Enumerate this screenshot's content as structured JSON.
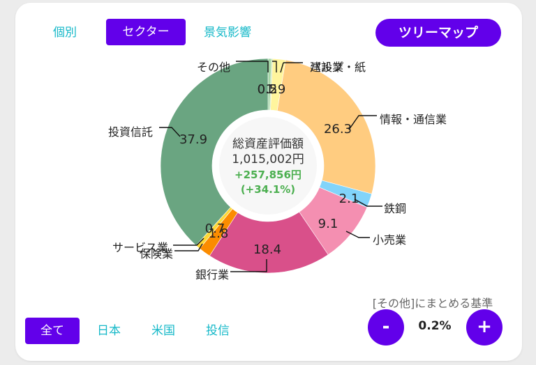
{
  "view_tabs": [
    "個別",
    "セクター",
    "景気影響"
  ],
  "treemap_label": "ツリーマップ",
  "region_tabs": [
    "全て",
    "日本",
    "米国",
    "投信"
  ],
  "threshold": {
    "label": "[その他]にまとめる基準",
    "value": "0.2%",
    "minus": "-",
    "plus": "+"
  },
  "chart_data": {
    "type": "pie",
    "title": "",
    "center": {
      "line1": "総資産評価額",
      "line2": "1,015,002円",
      "line3": "+257,856円",
      "line4": "(+34.1%)"
    },
    "slices": [
      {
        "name": "その他",
        "value": 0.5,
        "label": "0.5",
        "color": "#a5d6a7"
      },
      {
        "name": "建設業",
        "value": 0.2,
        "label": "0.2",
        "color": "#c5e1a5"
      },
      {
        "name": "パルプ・紙",
        "value": 1.9,
        "label": "1.9",
        "color": "#fff59d"
      },
      {
        "name": "情報・通信業",
        "value": 26.3,
        "label": "26.3",
        "color": "#ffcc80"
      },
      {
        "name": "鉄鋼",
        "value": 2.1,
        "label": "2.1",
        "color": "#81d4fa"
      },
      {
        "name": "小売業",
        "value": 9.1,
        "label": "9.1",
        "color": "#f48fb1"
      },
      {
        "name": "銀行業",
        "value": 18.4,
        "label": "18.4",
        "color": "#d9508a"
      },
      {
        "name": "保険業",
        "value": 1.8,
        "label": "1.8",
        "color": "#fb8c00"
      },
      {
        "name": "サービス業",
        "value": 0.7,
        "label": "0.7",
        "color": "#fdd835"
      },
      {
        "name": "投資信託",
        "value": 37.9,
        "label": "37.9",
        "color": "#6aa581"
      }
    ]
  },
  "colors": {
    "accent": "#6200ea",
    "tab_text": "#14b8c8",
    "gain": "#4caf50"
  }
}
